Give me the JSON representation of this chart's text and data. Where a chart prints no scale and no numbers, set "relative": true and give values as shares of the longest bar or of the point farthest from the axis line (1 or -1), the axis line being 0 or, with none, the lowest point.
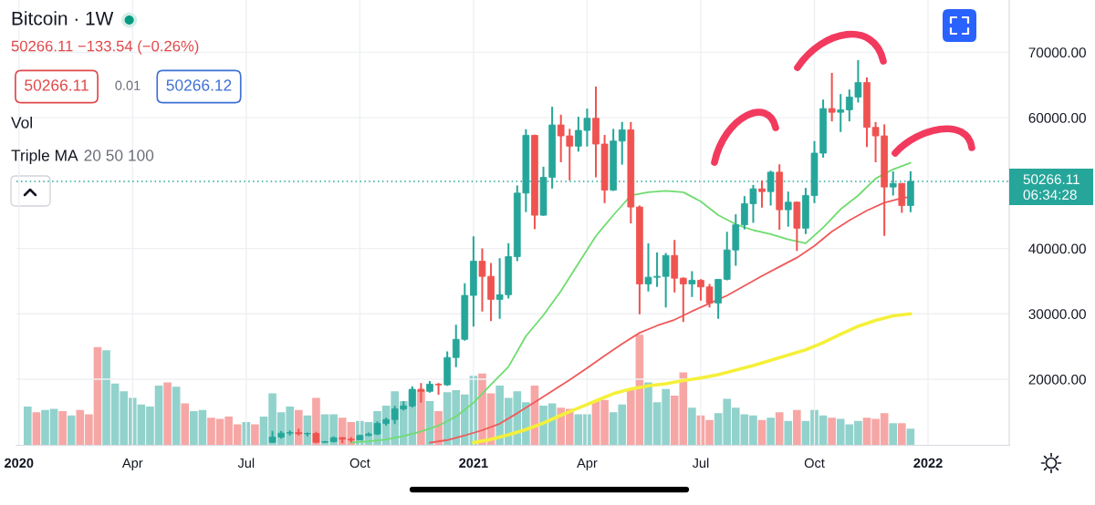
{
  "chart_data": [
    {
      "type": "candlestick",
      "title": "Bitcoin · 1W",
      "subtitle": "50266.11 −133.54 (−0.26%)",
      "x": [
        "2020-07-27",
        "2020-08-03",
        "2020-08-10",
        "2020-08-17",
        "2020-08-24",
        "2020-08-31",
        "2020-09-07",
        "2020-09-14",
        "2020-09-21",
        "2020-09-28",
        "2020-10-05",
        "2020-10-12",
        "2020-10-19",
        "2020-10-26",
        "2020-11-02",
        "2020-11-09",
        "2020-11-16",
        "2020-11-23",
        "2020-11-30",
        "2020-12-07",
        "2020-12-14",
        "2020-12-21",
        "2020-12-28",
        "2021-01-04",
        "2021-01-11",
        "2021-01-18",
        "2021-01-25",
        "2021-02-01",
        "2021-02-08",
        "2021-02-15",
        "2021-02-22",
        "2021-03-01",
        "2021-03-08",
        "2021-03-15",
        "2021-03-22",
        "2021-03-29",
        "2021-04-05",
        "2021-04-12",
        "2021-04-19",
        "2021-04-26",
        "2021-05-03",
        "2021-05-10",
        "2021-05-17",
        "2021-05-24",
        "2021-05-31",
        "2021-06-07",
        "2021-06-14",
        "2021-06-21",
        "2021-06-28",
        "2021-07-05",
        "2021-07-12",
        "2021-07-19",
        "2021-07-26",
        "2021-08-02",
        "2021-08-09",
        "2021-08-16",
        "2021-08-23",
        "2021-08-30",
        "2021-09-06",
        "2021-09-13",
        "2021-09-20",
        "2021-09-27",
        "2021-10-04",
        "2021-10-11",
        "2021-10-18",
        "2021-10-25",
        "2021-11-01",
        "2021-11-08",
        "2021-11-15",
        "2021-11-22",
        "2021-11-29",
        "2021-12-06",
        "2021-12-13",
        "2021-12-20"
      ],
      "ohlc": [
        [
          10350,
          12080,
          10300,
          11160
        ],
        [
          11160,
          12080,
          10920,
          11760
        ],
        [
          11760,
          12180,
          11390,
          11850
        ],
        [
          11850,
          12450,
          11390,
          11660
        ],
        [
          11660,
          11850,
          11250,
          11710
        ],
        [
          11710,
          11940,
          10230,
          10370
        ],
        [
          10370,
          10550,
          10250,
          10460
        ],
        [
          10460,
          11250,
          10320,
          11060
        ],
        [
          11060,
          11160,
          10230,
          10830
        ],
        [
          10830,
          11110,
          10370,
          10700
        ],
        [
          10700,
          11530,
          10650,
          11390
        ],
        [
          11390,
          11850,
          11300,
          11620
        ],
        [
          11620,
          13560,
          11480,
          13240
        ],
        [
          13240,
          14100,
          12900,
          13840
        ],
        [
          13840,
          15920,
          13140,
          15460
        ],
        [
          15460,
          16620,
          15230,
          15920
        ],
        [
          15920,
          18930,
          15700,
          18470
        ],
        [
          18470,
          19400,
          16400,
          18150
        ],
        [
          18150,
          19720,
          17950,
          19250
        ],
        [
          19250,
          19400,
          17650,
          19150
        ],
        [
          19150,
          24260,
          19000,
          23330
        ],
        [
          23330,
          28330,
          21850,
          26110
        ],
        [
          26110,
          34670,
          25900,
          32820
        ],
        [
          32820,
          41850,
          28050,
          38050
        ],
        [
          38050,
          40000,
          30370,
          35740
        ],
        [
          35740,
          37780,
          28890,
          32220
        ],
        [
          32220,
          38520,
          29260,
          32920
        ],
        [
          32920,
          40830,
          32360,
          38750
        ],
        [
          38750,
          49630,
          38050,
          48470
        ],
        [
          48470,
          58240,
          45560,
          57310
        ],
        [
          57310,
          57400,
          42960,
          45090
        ],
        [
          45090,
          52500,
          45000,
          50880
        ],
        [
          50880,
          61670,
          49170,
          58890
        ],
        [
          58890,
          60460,
          53190,
          57220
        ],
        [
          57220,
          58290,
          50420,
          55650
        ],
        [
          55650,
          60140,
          54810,
          58060
        ],
        [
          58060,
          61390,
          55600,
          59910
        ],
        [
          59910,
          64770,
          50880,
          55970
        ],
        [
          55970,
          57360,
          46940,
          48930
        ],
        [
          48930,
          58290,
          48800,
          56430
        ],
        [
          56430,
          59350,
          52820,
          58150
        ],
        [
          58150,
          59350,
          43840,
          46340
        ],
        [
          46340,
          46570,
          29950,
          34580
        ],
        [
          34580,
          40790,
          33420,
          35600
        ],
        [
          35600,
          39400,
          34120,
          35740
        ],
        [
          35740,
          39300,
          30970,
          38930
        ],
        [
          38930,
          41290,
          33290,
          35460
        ],
        [
          35460,
          35600,
          28750,
          34580
        ],
        [
          34580,
          36530,
          32590,
          35140
        ],
        [
          35140,
          35300,
          32030,
          34120
        ],
        [
          34120,
          34580,
          30970,
          31660
        ],
        [
          31660,
          35300,
          29260,
          35280
        ],
        [
          35280,
          42550,
          35140,
          39770
        ],
        [
          39770,
          45230,
          37360,
          43610
        ],
        [
          43610,
          48010,
          42920,
          46850
        ],
        [
          46850,
          49720,
          43930,
          49120
        ],
        [
          49120,
          50420,
          46250,
          48700
        ],
        [
          48700,
          51900,
          46570,
          51670
        ],
        [
          51670,
          52870,
          42870,
          45925
        ],
        [
          45925,
          48700,
          43330,
          47080
        ],
        [
          47080,
          47200,
          39630,
          43100
        ],
        [
          43100,
          49260,
          42220,
          48100
        ],
        [
          48100,
          56430,
          46940,
          54580
        ],
        [
          54580,
          62780,
          53890,
          61390
        ],
        [
          61390,
          66850,
          59440,
          60830
        ],
        [
          60830,
          63610,
          57820,
          61200
        ],
        [
          61200,
          64310,
          59440,
          63150
        ],
        [
          63150,
          68800,
          62320,
          65370
        ],
        [
          65370,
          66160,
          55510,
          58520
        ],
        [
          58520,
          59350,
          53190,
          57220
        ],
        [
          57220,
          58980,
          41940,
          49400
        ],
        [
          49400,
          51800,
          48100,
          49950
        ],
        [
          49950,
          50000,
          45460,
          46570
        ],
        [
          46570,
          51800,
          45550,
          50266.11
        ]
      ],
      "colors": [
        "#26a69a",
        "#26a69a",
        "#26a69a",
        "#ef5350",
        "#26a69a",
        "#ef5350",
        "#26a69a",
        "#26a69a",
        "#ef5350",
        "#ef5350",
        "#26a69a",
        "#26a69a",
        "#26a69a",
        "#26a69a",
        "#26a69a",
        "#26a69a",
        "#26a69a",
        "#ef5350",
        "#26a69a",
        "#ef5350",
        "#26a69a",
        "#26a69a",
        "#26a69a",
        "#26a69a",
        "#ef5350",
        "#ef5350",
        "#26a69a",
        "#26a69a",
        "#26a69a",
        "#26a69a",
        "#ef5350",
        "#26a69a",
        "#26a69a",
        "#ef5350",
        "#ef5350",
        "#26a69a",
        "#26a69a",
        "#ef5350",
        "#ef5350",
        "#26a69a",
        "#26a69a",
        "#ef5350",
        "#ef5350",
        "#26a69a",
        "#26a69a",
        "#26a69a",
        "#ef5350",
        "#ef5350",
        "#26a69a",
        "#ef5350",
        "#ef5350",
        "#26a69a",
        "#26a69a",
        "#26a69a",
        "#26a69a",
        "#26a69a",
        "#ef5350",
        "#26a69a",
        "#ef5350",
        "#26a69a",
        "#ef5350",
        "#26a69a",
        "#26a69a",
        "#26a69a",
        "#ef5350",
        "#26a69a",
        "#26a69a",
        "#26a69a",
        "#ef5350",
        "#ef5350",
        "#ef5350",
        "#26a69a",
        "#ef5350",
        "#26a69a"
      ],
      "series": [
        {
          "type": "line",
          "color": "#6fdc6f",
          "x": [
            "2020-09-28",
            "2020-10-12",
            "2020-10-26",
            "2020-11-09",
            "2020-11-23",
            "2020-12-07",
            "2020-12-21",
            "2021-01-04",
            "2021-01-18",
            "2021-02-01",
            "2021-02-15",
            "2021-03-01",
            "2021-03-15",
            "2021-03-29",
            "2021-04-12",
            "2021-04-26",
            "2021-05-10",
            "2021-05-24",
            "2021-06-07",
            "2021-06-21",
            "2021-07-05",
            "2021-07-19",
            "2021-08-02",
            "2021-08-16",
            "2021-08-30",
            "2021-09-13",
            "2021-09-27",
            "2021-10-11",
            "2021-10-25",
            "2021-11-08",
            "2021-11-22",
            "2021-12-06",
            "2021-12-20"
          ],
          "values": [
            10300,
            10500,
            10800,
            11300,
            12000,
            12900,
            14300,
            16400,
            19200,
            21900,
            26600,
            29800,
            33500,
            37700,
            41900,
            45100,
            48100,
            48600,
            48800,
            48600,
            47200,
            45100,
            43700,
            42800,
            42200,
            41400,
            40800,
            43200,
            46000,
            48100,
            50700,
            52100,
            53100
          ]
        },
        {
          "type": "line",
          "color": "#f0595a",
          "x": [
            "2020-11-30",
            "2020-12-14",
            "2020-12-28",
            "2021-01-11",
            "2021-01-25",
            "2021-02-08",
            "2021-02-22",
            "2021-03-08",
            "2021-03-22",
            "2021-04-05",
            "2021-04-19",
            "2021-05-03",
            "2021-05-17",
            "2021-05-31",
            "2021-06-14",
            "2021-06-28",
            "2021-07-12",
            "2021-07-26",
            "2021-08-09",
            "2021-08-23",
            "2021-09-06",
            "2021-09-20",
            "2021-10-04",
            "2021-10-18",
            "2021-11-01",
            "2021-11-15",
            "2021-11-29",
            "2021-12-13",
            "2021-12-20"
          ],
          "values": [
            10300,
            10700,
            11400,
            12200,
            13200,
            14800,
            16500,
            18200,
            19900,
            21700,
            23600,
            25400,
            27100,
            28200,
            29100,
            30400,
            31600,
            32800,
            34300,
            35800,
            37200,
            38600,
            40400,
            42600,
            44300,
            45800,
            47000,
            47700,
            47900
          ]
        },
        {
          "type": "line",
          "color": "#f5f03a",
          "x": [
            "2021-01-04",
            "2021-01-18",
            "2021-02-01",
            "2021-02-15",
            "2021-03-01",
            "2021-03-15",
            "2021-03-29",
            "2021-04-12",
            "2021-04-26",
            "2021-05-10",
            "2021-05-24",
            "2021-06-07",
            "2021-06-21",
            "2021-07-05",
            "2021-07-19",
            "2021-08-02",
            "2021-08-16",
            "2021-08-30",
            "2021-09-13",
            "2021-09-27",
            "2021-10-11",
            "2021-10-25",
            "2021-11-08",
            "2021-11-22",
            "2021-12-06",
            "2021-12-20"
          ],
          "values": [
            10300,
            10800,
            11500,
            12300,
            13300,
            14500,
            15600,
            16700,
            17800,
            18500,
            19000,
            19300,
            19800,
            20200,
            20700,
            21400,
            22100,
            22900,
            23700,
            24500,
            25600,
            26900,
            28100,
            29000,
            29700,
            30000
          ]
        }
      ],
      "xlim": [
        "2020-01-04",
        "2022-03-09"
      ],
      "xticks": [
        {
          "value": "2020-01-06",
          "label": "2020"
        },
        {
          "value": "2020-04-06",
          "label": "Apr"
        },
        {
          "value": "2020-07-06",
          "label": "Jul"
        },
        {
          "value": "2020-10-05",
          "label": "Oct"
        },
        {
          "value": "2021-01-04",
          "label": "2021"
        },
        {
          "value": "2021-04-05",
          "label": "Apr"
        },
        {
          "value": "2021-07-05",
          "label": "Jul"
        },
        {
          "value": "2021-10-04",
          "label": "Oct"
        },
        {
          "value": "2022-01-03",
          "label": "2022"
        }
      ],
      "ylim": [
        9900,
        78000
      ],
      "yticks": [
        {
          "value": 20000,
          "label": "20000.00"
        },
        {
          "value": 30000,
          "label": "30000.00"
        },
        {
          "value": 40000,
          "label": "40000.00"
        },
        {
          "value": 60000,
          "label": "60000.00"
        },
        {
          "value": 70000,
          "label": "70000.00"
        }
      ],
      "grid": true,
      "ref_lines": [
        {
          "axis": "y",
          "value": 50266.11,
          "label": "50266.11",
          "color": "#26a69a",
          "line_style": "dotted"
        }
      ],
      "annotations": [
        "50266.11",
        "0.01",
        "50266.12",
        "Vol",
        "Triple MA",
        "20 50 100",
        "06:34:28"
      ]
    },
    {
      "type": "bar",
      "relative": true,
      "x": [
        "2020-01-13",
        "2020-01-20",
        "2020-01-27",
        "2020-02-03",
        "2020-02-10",
        "2020-02-17",
        "2020-02-24",
        "2020-03-02",
        "2020-03-09",
        "2020-03-16",
        "2020-03-23",
        "2020-03-30",
        "2020-04-06",
        "2020-04-13",
        "2020-04-20",
        "2020-04-27",
        "2020-05-04",
        "2020-05-11",
        "2020-05-18",
        "2020-05-25",
        "2020-06-01",
        "2020-06-08",
        "2020-06-15",
        "2020-06-22",
        "2020-06-29",
        "2020-07-06",
        "2020-07-13",
        "2020-07-20",
        "2020-07-27",
        "2020-08-03",
        "2020-08-10",
        "2020-08-17",
        "2020-08-24",
        "2020-08-31",
        "2020-09-07",
        "2020-09-14",
        "2020-09-21",
        "2020-09-28",
        "2020-10-05",
        "2020-10-12",
        "2020-10-19",
        "2020-10-26",
        "2020-11-02",
        "2020-11-09",
        "2020-11-16",
        "2020-11-23",
        "2020-11-30",
        "2020-12-07",
        "2020-12-14",
        "2020-12-21",
        "2020-12-28",
        "2021-01-04",
        "2021-01-11",
        "2021-01-18",
        "2021-01-25",
        "2021-02-01",
        "2021-02-08",
        "2021-02-15",
        "2021-02-22",
        "2021-03-01",
        "2021-03-08",
        "2021-03-15",
        "2021-03-22",
        "2021-03-29",
        "2021-04-05",
        "2021-04-12",
        "2021-04-19",
        "2021-04-26",
        "2021-05-03",
        "2021-05-10",
        "2021-05-17",
        "2021-05-24",
        "2021-05-31",
        "2021-06-07",
        "2021-06-14",
        "2021-06-21",
        "2021-06-28",
        "2021-07-05",
        "2021-07-12",
        "2021-07-19",
        "2021-07-26",
        "2021-08-02",
        "2021-08-09",
        "2021-08-16",
        "2021-08-23",
        "2021-08-30",
        "2021-09-06",
        "2021-09-13",
        "2021-09-20",
        "2021-09-27",
        "2021-10-04",
        "2021-10-11",
        "2021-10-18",
        "2021-10-25",
        "2021-11-01",
        "2021-11-08",
        "2021-11-15",
        "2021-11-22",
        "2021-11-29",
        "2021-12-06",
        "2021-12-13",
        "2021-12-20"
      ],
      "values": [
        0.35,
        0.3,
        0.32,
        0.33,
        0.31,
        0.27,
        0.32,
        0.28,
        0.89,
        0.86,
        0.56,
        0.49,
        0.43,
        0.37,
        0.35,
        0.54,
        0.57,
        0.53,
        0.38,
        0.31,
        0.32,
        0.25,
        0.24,
        0.26,
        0.19,
        0.21,
        0.19,
        0.26,
        0.47,
        0.3,
        0.35,
        0.32,
        0.27,
        0.43,
        0.28,
        0.28,
        0.25,
        0.21,
        0.22,
        0.21,
        0.31,
        0.36,
        0.49,
        0.4,
        0.5,
        0.5,
        0.4,
        0.31,
        0.48,
        0.5,
        0.46,
        0.63,
        0.65,
        0.47,
        0.54,
        0.43,
        0.49,
        0.39,
        0.54,
        0.36,
        0.38,
        0.34,
        0.33,
        0.28,
        0.28,
        0.4,
        0.41,
        0.3,
        0.37,
        0.5,
        1,
        0.57,
        0.39,
        0.51,
        0.45,
        0.66,
        0.34,
        0.27,
        0.23,
        0.29,
        0.42,
        0.34,
        0.28,
        0.27,
        0.23,
        0.25,
        0.3,
        0.22,
        0.32,
        0.22,
        0.32,
        0.27,
        0.25,
        0.24,
        0.19,
        0.22,
        0.25,
        0.24,
        0.29,
        0.2,
        0.2,
        0.15
      ],
      "colors": [
        "#92d2cc",
        "#f6a7a5",
        "#92d2cc",
        "#92d2cc",
        "#f6a7a5",
        "#92d2cc",
        "#f6a7a5",
        "#f6a7a5",
        "#f6a7a5",
        "#92d2cc",
        "#92d2cc",
        "#92d2cc",
        "#92d2cc",
        "#92d2cc",
        "#92d2cc",
        "#92d2cc",
        "#f6a7a5",
        "#92d2cc",
        "#f6a7a5",
        "#92d2cc",
        "#92d2cc",
        "#f6a7a5",
        "#f6a7a5",
        "#f6a7a5",
        "#f6a7a5",
        "#92d2cc",
        "#f6a7a5",
        "#92d2cc",
        "#92d2cc",
        "#92d2cc",
        "#92d2cc",
        "#f6a7a5",
        "#92d2cc",
        "#f6a7a5",
        "#92d2cc",
        "#92d2cc",
        "#f6a7a5",
        "#f6a7a5",
        "#92d2cc",
        "#92d2cc",
        "#92d2cc",
        "#92d2cc",
        "#92d2cc",
        "#92d2cc",
        "#92d2cc",
        "#f6a7a5",
        "#92d2cc",
        "#f6a7a5",
        "#92d2cc",
        "#92d2cc",
        "#92d2cc",
        "#92d2cc",
        "#f6a7a5",
        "#f6a7a5",
        "#92d2cc",
        "#92d2cc",
        "#92d2cc",
        "#92d2cc",
        "#f6a7a5",
        "#92d2cc",
        "#92d2cc",
        "#f6a7a5",
        "#f6a7a5",
        "#92d2cc",
        "#92d2cc",
        "#f6a7a5",
        "#f6a7a5",
        "#92d2cc",
        "#92d2cc",
        "#f6a7a5",
        "#f6a7a5",
        "#92d2cc",
        "#92d2cc",
        "#92d2cc",
        "#f6a7a5",
        "#f6a7a5",
        "#92d2cc",
        "#f6a7a5",
        "#f6a7a5",
        "#92d2cc",
        "#92d2cc",
        "#92d2cc",
        "#92d2cc",
        "#92d2cc",
        "#f6a7a5",
        "#92d2cc",
        "#f6a7a5",
        "#92d2cc",
        "#f6a7a5",
        "#92d2cc",
        "#92d2cc",
        "#92d2cc",
        "#f6a7a5",
        "#92d2cc",
        "#92d2cc",
        "#92d2cc",
        "#f6a7a5",
        "#f6a7a5",
        "#f6a7a5",
        "#92d2cc",
        "#f6a7a5",
        "#92d2cc"
      ],
      "xlim": [
        "2020-01-04",
        "2022-03-09"
      ]
    }
  ]
}
